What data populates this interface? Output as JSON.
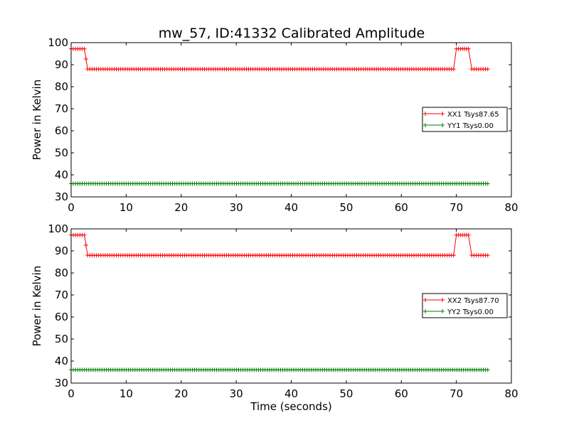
{
  "title": "mw_57, ID:41332 Calibrated Amplitude",
  "colors": {
    "xx": "#ff0000",
    "yy": "#008000",
    "axes": "#000000",
    "background": "#ffffff"
  },
  "chart_data": [
    {
      "type": "line",
      "title": "mw_57, ID:41332 Calibrated Amplitude",
      "xlabel": "",
      "ylabel": "Power in Kelvin",
      "xlim": [
        0,
        80
      ],
      "ylim": [
        30,
        100
      ],
      "xticks": [
        "0",
        "10",
        "20",
        "30",
        "40",
        "50",
        "60",
        "70",
        "80"
      ],
      "yticks": [
        "30",
        "40",
        "50",
        "60",
        "70",
        "80",
        "90",
        "100"
      ],
      "grid": false,
      "legend_position": "center-right",
      "marker": "+",
      "series": [
        {
          "name": "XX1 Tsys87.65",
          "color": "#ff0000",
          "points": [
            [
              0,
              97.2
            ],
            [
              2.4,
              97.2
            ],
            [
              3.0,
              88.0
            ],
            [
              69.5,
              88.0
            ],
            [
              70.0,
              97.2
            ],
            [
              72.2,
              97.2
            ],
            [
              72.8,
              88.0
            ],
            [
              75.7,
              88.0
            ]
          ]
        },
        {
          "name": "YY1 Tsys0.00",
          "color": "#008000",
          "points": [
            [
              0,
              36.0
            ],
            [
              75.7,
              36.0
            ]
          ]
        }
      ]
    },
    {
      "type": "line",
      "title": "",
      "xlabel": "Time (seconds)",
      "ylabel": "Power in Kelvin",
      "xlim": [
        0,
        80
      ],
      "ylim": [
        30,
        100
      ],
      "xticks": [
        "0",
        "10",
        "20",
        "30",
        "40",
        "50",
        "60",
        "70",
        "80"
      ],
      "yticks": [
        "30",
        "40",
        "50",
        "60",
        "70",
        "80",
        "90",
        "100"
      ],
      "grid": false,
      "legend_position": "center-right",
      "marker": "+",
      "series": [
        {
          "name": "XX2 Tsys87.70",
          "color": "#ff0000",
          "points": [
            [
              0,
              97.2
            ],
            [
              2.4,
              97.2
            ],
            [
              3.0,
              88.0
            ],
            [
              69.5,
              88.0
            ],
            [
              70.0,
              97.2
            ],
            [
              72.2,
              97.2
            ],
            [
              72.8,
              88.0
            ],
            [
              75.7,
              88.0
            ]
          ]
        },
        {
          "name": "YY2 Tsys0.00",
          "color": "#008000",
          "points": [
            [
              0,
              36.0
            ],
            [
              75.7,
              36.0
            ]
          ]
        }
      ]
    }
  ]
}
